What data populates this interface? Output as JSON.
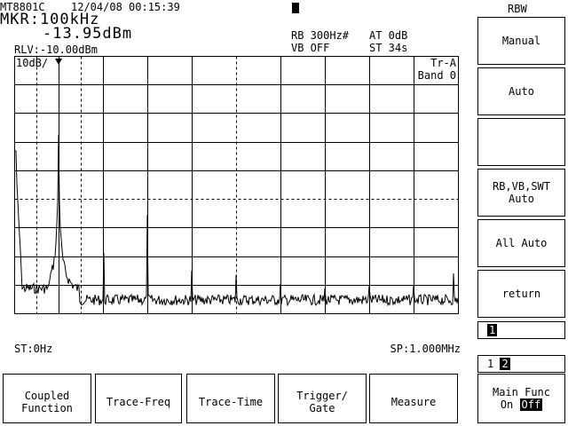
{
  "header": {
    "model": "MT8801C",
    "datetime": "12/04/08 00:15:39",
    "marker_freq": "MKR:100kHz",
    "marker_level": "-13.95dBm",
    "ref_level": "RLV:-10.00dBm",
    "rbw": "RB 300Hz#",
    "attenuation": "AT 0dB",
    "vbw": "VB OFF",
    "sweep_time": "ST 34s"
  },
  "graph": {
    "scale": "10dB/",
    "trace": "Tr-A",
    "band": "Band 0",
    "start": "ST:0Hz",
    "span": "SP:1.000MHz"
  },
  "side_panel": {
    "title": "RBW",
    "buttons": [
      {
        "lines": [
          "Manual"
        ]
      },
      {
        "lines": [
          "Auto"
        ]
      },
      {
        "lines": []
      },
      {
        "lines": [
          "RB,VB,SWT",
          "Auto"
        ]
      },
      {
        "lines": [
          "All Auto"
        ]
      },
      {
        "lines": [
          "return"
        ]
      }
    ],
    "page_a": [
      "1"
    ],
    "page_b": [
      "1",
      "2"
    ]
  },
  "bottom_buttons": [
    {
      "lines": [
        "Coupled",
        "Function"
      ]
    },
    {
      "lines": [
        "Trace-Freq"
      ]
    },
    {
      "lines": [
        "Trace-Time"
      ]
    },
    {
      "lines": [
        "Trigger/",
        "Gate"
      ]
    },
    {
      "lines": [
        "Measure"
      ]
    }
  ],
  "main_func": {
    "label": "Main Func",
    "on": "On",
    "off": "Off"
  }
}
